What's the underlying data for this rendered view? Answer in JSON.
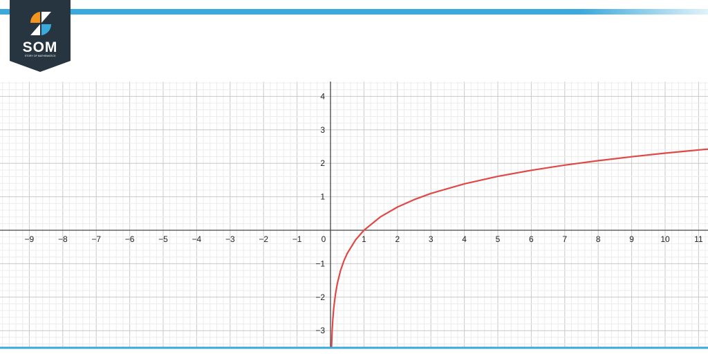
{
  "brand": {
    "logo_text": "SOM",
    "logo_subtitle": "STORY OF MATHEMATICS",
    "accent": "#3aa9dc",
    "logo_bg": "#263540",
    "logo_orange": "#f7941d"
  },
  "chart_data": {
    "type": "line",
    "title": "",
    "xlabel": "",
    "ylabel": "",
    "xlim": [
      -9.9,
      11.5
    ],
    "ylim": [
      -3.5,
      4.4
    ],
    "grid": true,
    "minor_grid_step": 0.2,
    "x_ticks": [
      -9,
      -8,
      -7,
      -6,
      -5,
      -4,
      -3,
      -2,
      -1,
      0,
      1,
      2,
      3,
      4,
      5,
      6,
      7,
      8,
      9,
      10,
      11
    ],
    "x_tick_labels": [
      "−9",
      "−8",
      "−7",
      "−6",
      "−5",
      "−4",
      "−3",
      "−2",
      "−1",
      "0",
      "1",
      "2",
      "3",
      "4",
      "5",
      "6",
      "7",
      "8",
      "9",
      "10",
      "11"
    ],
    "y_ticks": [
      4,
      3,
      2,
      1,
      -1,
      -2,
      -3
    ],
    "y_tick_labels": [
      "4",
      "3",
      "2",
      "1",
      "−1",
      "−2",
      "−3"
    ],
    "series": [
      {
        "color": "#e04848",
        "x": [
          0.03,
          0.05,
          0.07,
          0.1,
          0.15,
          0.2,
          0.3,
          0.4,
          0.5,
          0.75,
          1,
          1.5,
          2,
          2.5,
          3,
          4,
          5,
          6,
          7,
          8,
          9,
          10,
          11,
          11.5
        ],
        "y": [
          -3.507,
          -2.996,
          -2.659,
          -2.303,
          -1.897,
          -1.609,
          -1.204,
          -0.916,
          -0.693,
          -0.288,
          0,
          0.405,
          0.693,
          0.916,
          1.099,
          1.386,
          1.609,
          1.792,
          1.946,
          2.079,
          2.197,
          2.303,
          2.398,
          2.442
        ]
      }
    ]
  }
}
